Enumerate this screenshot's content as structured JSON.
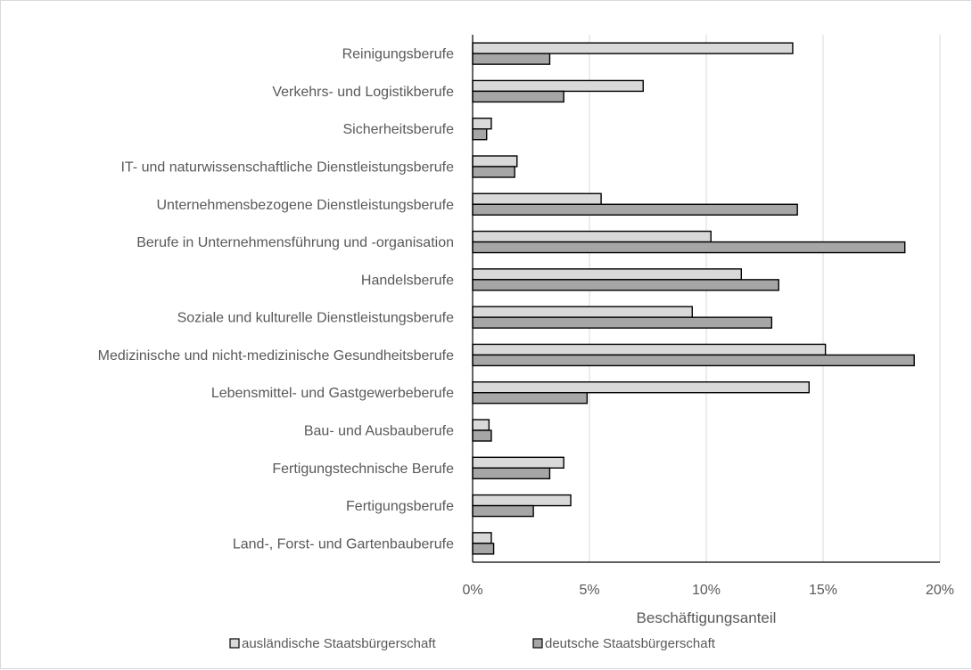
{
  "chart_data": {
    "type": "bar",
    "orientation": "horizontal",
    "categories": [
      "Reinigungsberufe",
      "Verkehrs- und Logistikberufe",
      "Sicherheitsberufe",
      "IT- und naturwissenschaftliche Dienstleistungsberufe",
      "Unternehmensbezogene Dienstleistungsberufe",
      "Berufe in Unternehmensführung und -organisation",
      "Handelsberufe",
      "Soziale und kulturelle Dienstleistungsberufe",
      "Medizinische und nicht-medizinische Gesundheitsberufe",
      "Lebensmittel- und Gastgewerbeberufe",
      "Bau- und Ausbauberufe",
      "Fertigungstechnische Berufe",
      "Fertigungsberufe",
      "Land-, Forst- und Gartenbauberufe"
    ],
    "series": [
      {
        "name": "ausländische Staatsbürgerschaft",
        "color": "#d9d9d9",
        "values": [
          13.7,
          7.3,
          0.8,
          1.9,
          5.5,
          10.2,
          11.5,
          9.4,
          15.1,
          14.4,
          0.7,
          3.9,
          4.2,
          0.8
        ]
      },
      {
        "name": "deutsche Staatsbürgerschaft",
        "color": "#a6a6a6",
        "values": [
          3.3,
          3.9,
          0.6,
          1.8,
          13.9,
          18.5,
          13.1,
          12.8,
          18.9,
          4.9,
          0.8,
          3.3,
          2.6,
          0.9
        ]
      }
    ],
    "xlabel": "Beschäftigungsanteil",
    "xlim": [
      0,
      20
    ],
    "xticks": [
      0,
      5,
      10,
      15,
      20
    ],
    "tick_labels": [
      "0%",
      "5%",
      "10%",
      "15%",
      "20%"
    ],
    "grid": "vertical",
    "legend": "bottom",
    "bar_edge_color": "#000000",
    "gridline_color": "#d9d9d9"
  }
}
